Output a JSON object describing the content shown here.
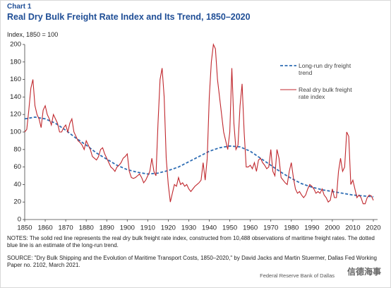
{
  "chart_data": {
    "type": "line",
    "label": "Chart 1",
    "title": "Real Dry Bulk Freight Rate Index and Its Trend, 1850–2020",
    "subtitle": "Index, 1850 = 100",
    "notes": "NOTES: The solid red line represents the real dry bulk freight rate index, constructed from 10,488 observations of maritime freight rates. The dotted blue line is an estimate of the long-run trend.",
    "source": "SOURCE: \"Dry Bulk Shipping and the Evolution of Maritime Transport Costs, 1850–2020,\" by David Jacks and Martin Stuermer, Dallas Fed Working Paper no. 2102, March 2021.",
    "footer": "Federal Reserve Bank of Dallas",
    "watermark": "信德海事",
    "xlim": [
      1850,
      2020
    ],
    "ylim": [
      0,
      200
    ],
    "xticks": [
      1850,
      1860,
      1870,
      1880,
      1890,
      1900,
      1910,
      1920,
      1930,
      1940,
      1950,
      1960,
      1970,
      1980,
      1990,
      2000,
      2010,
      2020
    ],
    "yticks": [
      0,
      20,
      40,
      60,
      80,
      100,
      120,
      140,
      160,
      180,
      200
    ],
    "grid": false,
    "series": [
      {
        "name": "Long-run dry freight trend",
        "color": "#2e6db4",
        "dashed": true,
        "x": [
          1850,
          1855,
          1860,
          1865,
          1870,
          1875,
          1880,
          1885,
          1890,
          1895,
          1900,
          1905,
          1910,
          1915,
          1920,
          1925,
          1930,
          1935,
          1940,
          1945,
          1950,
          1955,
          1960,
          1965,
          1970,
          1975,
          1980,
          1985,
          1990,
          1995,
          2000,
          2005,
          2010,
          2015,
          2020
        ],
        "values": [
          115,
          117,
          115,
          110,
          102,
          93,
          85,
          76,
          69,
          62,
          57,
          54,
          52,
          53,
          56,
          60,
          66,
          72,
          78,
          82,
          84,
          83,
          78,
          70,
          62,
          54,
          47,
          41,
          37,
          34,
          32,
          30,
          28,
          27,
          26
        ]
      },
      {
        "name": "Real dry bulk freight rate index",
        "color": "#c0272d",
        "dashed": false,
        "x": [
          1850,
          1851,
          1852,
          1853,
          1854,
          1855,
          1856,
          1857,
          1858,
          1859,
          1860,
          1861,
          1862,
          1863,
          1864,
          1865,
          1866,
          1867,
          1868,
          1869,
          1870,
          1871,
          1872,
          1873,
          1874,
          1875,
          1876,
          1877,
          1878,
          1879,
          1880,
          1881,
          1882,
          1883,
          1884,
          1885,
          1886,
          1887,
          1888,
          1889,
          1890,
          1891,
          1892,
          1893,
          1894,
          1895,
          1896,
          1897,
          1898,
          1899,
          1900,
          1901,
          1902,
          1903,
          1904,
          1905,
          1906,
          1907,
          1908,
          1909,
          1910,
          1911,
          1912,
          1913,
          1914,
          1915,
          1916,
          1917,
          1918,
          1919,
          1920,
          1921,
          1922,
          1923,
          1924,
          1925,
          1926,
          1927,
          1928,
          1929,
          1930,
          1931,
          1932,
          1933,
          1934,
          1935,
          1936,
          1937,
          1938,
          1939,
          1940,
          1941,
          1942,
          1943,
          1944,
          1945,
          1946,
          1947,
          1948,
          1949,
          1950,
          1951,
          1952,
          1953,
          1954,
          1955,
          1956,
          1957,
          1958,
          1959,
          1960,
          1961,
          1962,
          1963,
          1964,
          1965,
          1966,
          1967,
          1968,
          1969,
          1970,
          1971,
          1972,
          1973,
          1974,
          1975,
          1976,
          1977,
          1978,
          1979,
          1980,
          1981,
          1982,
          1983,
          1984,
          1985,
          1986,
          1987,
          1988,
          1989,
          1990,
          1991,
          1992,
          1993,
          1994,
          1995,
          1996,
          1997,
          1998,
          1999,
          2000,
          2001,
          2002,
          2003,
          2004,
          2005,
          2006,
          2007,
          2008,
          2009,
          2010,
          2011,
          2012,
          2013,
          2014,
          2015,
          2016,
          2017,
          2018,
          2019,
          2020
        ],
        "values": [
          100,
          103,
          125,
          150,
          160,
          130,
          120,
          115,
          105,
          125,
          130,
          120,
          115,
          108,
          120,
          115,
          110,
          100,
          100,
          105,
          108,
          100,
          110,
          115,
          100,
          95,
          90,
          88,
          85,
          80,
          90,
          85,
          80,
          72,
          70,
          68,
          72,
          80,
          82,
          75,
          70,
          65,
          60,
          58,
          55,
          60,
          62,
          65,
          70,
          72,
          75,
          55,
          48,
          47,
          48,
          50,
          52,
          48,
          42,
          45,
          50,
          55,
          70,
          55,
          50,
          110,
          160,
          173,
          140,
          70,
          40,
          20,
          30,
          40,
          38,
          48,
          40,
          42,
          38,
          40,
          35,
          32,
          35,
          38,
          40,
          42,
          45,
          65,
          45,
          70,
          140,
          180,
          200,
          195,
          160,
          140,
          120,
          100,
          90,
          80,
          100,
          173,
          110,
          80,
          85,
          130,
          155,
          100,
          60,
          60,
          62,
          58,
          65,
          55,
          68,
          70,
          65,
          62,
          58,
          60,
          80,
          55,
          50,
          80,
          70,
          48,
          45,
          42,
          40,
          55,
          65,
          48,
          35,
          30,
          32,
          28,
          25,
          28,
          35,
          40,
          38,
          35,
          30,
          32,
          30,
          35,
          28,
          25,
          20,
          22,
          35,
          25,
          25,
          55,
          70,
          55,
          60,
          100,
          95,
          40,
          45,
          35,
          25,
          28,
          25,
          18,
          18,
          25,
          28,
          27,
          22
        ]
      }
    ]
  }
}
